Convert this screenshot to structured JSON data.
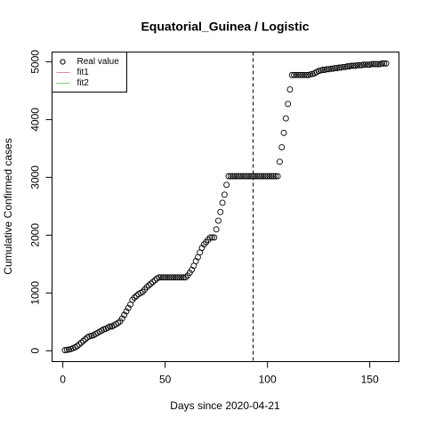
{
  "chart_data": {
    "type": "scatter",
    "title": "Equatorial_Guinea / Logistic",
    "x_label": "Days since 2020-04-21",
    "y_label": "Cumulative Confirmed cases",
    "xlim": [
      -5.28,
      164.28
    ],
    "ylim": [
      -188,
      5168
    ],
    "xticks": [
      0,
      50,
      100,
      150
    ],
    "yticks": [
      0,
      1000,
      2000,
      3000,
      4000,
      5000
    ],
    "vline": 93,
    "legend": [
      {
        "label": "Real value",
        "color": "#000000"
      },
      {
        "label": "fit1",
        "color": "#e8879a"
      },
      {
        "label": "fit2",
        "color": "#7fc97f"
      }
    ],
    "series": [
      {
        "name": "Real value",
        "color": "#000000",
        "x": [
          1,
          2,
          3,
          4,
          5,
          6,
          7,
          8,
          9,
          10,
          11,
          12,
          13,
          14,
          15,
          16,
          17,
          18,
          19,
          20,
          21,
          22,
          23,
          24,
          25,
          26,
          27,
          28,
          29,
          30,
          31,
          32,
          33,
          34,
          35,
          36,
          37,
          38,
          39,
          40,
          41,
          42,
          43,
          44,
          45,
          46,
          47,
          48,
          49,
          50,
          51,
          52,
          53,
          54,
          55,
          56,
          57,
          58,
          59,
          60,
          61,
          62,
          63,
          64,
          65,
          66,
          67,
          68,
          69,
          70,
          71,
          72,
          73,
          74,
          75,
          76,
          77,
          78,
          79,
          80,
          81,
          82,
          83,
          84,
          85,
          86,
          87,
          88,
          89,
          90,
          91,
          92,
          93,
          94,
          95,
          96,
          97,
          98,
          99,
          100,
          101,
          102,
          103,
          104,
          105,
          106,
          107,
          108,
          109,
          110,
          111,
          112,
          113,
          114,
          115,
          116,
          117,
          118,
          119,
          120,
          121,
          122,
          123,
          124,
          125,
          126,
          127,
          128,
          129,
          130,
          131,
          132,
          133,
          134,
          135,
          136,
          137,
          138,
          139,
          140,
          141,
          142,
          143,
          144,
          145,
          146,
          147,
          148,
          149,
          150,
          151,
          152,
          153,
          154,
          155,
          156,
          157,
          158
        ],
        "values": [
          10,
          15,
          20,
          30,
          45,
          60,
          80,
          110,
          140,
          170,
          200,
          230,
          250,
          260,
          270,
          290,
          310,
          330,
          350,
          370,
          380,
          400,
          420,
          420,
          440,
          460,
          480,
          510,
          560,
          620,
          680,
          740,
          800,
          880,
          920,
          950,
          980,
          1000,
          1020,
          1060,
          1100,
          1130,
          1160,
          1190,
          1220,
          1250,
          1270,
          1270,
          1270,
          1270,
          1270,
          1270,
          1270,
          1270,
          1270,
          1270,
          1270,
          1270,
          1270,
          1270,
          1300,
          1350,
          1400,
          1470,
          1550,
          1620,
          1700,
          1780,
          1840,
          1880,
          1920,
          1960,
          1960,
          1960,
          2100,
          2250,
          2400,
          2560,
          2700,
          2870,
          3020,
          3020,
          3020,
          3020,
          3020,
          3020,
          3020,
          3020,
          3020,
          3020,
          3020,
          3020,
          3020,
          3020,
          3020,
          3020,
          3020,
          3020,
          3020,
          3020,
          3020,
          3020,
          3020,
          3020,
          3020,
          3270,
          3520,
          3770,
          4020,
          4270,
          4520,
          4770,
          4770,
          4770,
          4770,
          4770,
          4770,
          4770,
          4770,
          4770,
          4780,
          4790,
          4800,
          4820,
          4840,
          4850,
          4860,
          4860,
          4870,
          4870,
          4880,
          4880,
          4890,
          4890,
          4900,
          4900,
          4910,
          4910,
          4920,
          4920,
          4930,
          4930,
          4930,
          4940,
          4940,
          4940,
          4950,
          4950,
          4950,
          4950,
          4960,
          4960,
          4960,
          4960,
          4960,
          4970,
          4970,
          4970
        ]
      }
    ]
  }
}
